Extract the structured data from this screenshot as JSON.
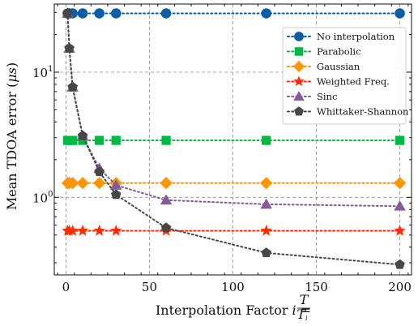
{
  "chart_data": {
    "type": "line",
    "xlabel": "Interpolation Factor",
    "xlabel_math": {
      "variable": "i",
      "relation": "=",
      "numerator": "T",
      "denominator": "T",
      "denominator_subscript": "i"
    },
    "ylabel": "Mean TDOA error (",
    "ylabel_unit": "μs",
    "ylabel_close": ")",
    "xlim": [
      -7,
      207
    ],
    "ylim": [
      0.24,
      35
    ],
    "yscale": "log",
    "xticks": [
      0,
      50,
      100,
      150,
      200
    ],
    "xtick_labels": [
      "0",
      "50",
      "100",
      "150",
      "200"
    ],
    "yticks": [
      1,
      10
    ],
    "ytick_labels": [
      {
        "base": "10",
        "exp": "0"
      },
      {
        "base": "10",
        "exp": "1"
      }
    ],
    "grid": true,
    "legend_position": "top-right",
    "series": [
      {
        "name": "No interpolation",
        "color": "#0C5DA5",
        "marker": "circle",
        "x": [
          1,
          2,
          4,
          10,
          20,
          30,
          60,
          120,
          200
        ],
        "y": [
          29.5,
          29.5,
          29.5,
          29.5,
          29.5,
          29.5,
          29.5,
          29.5,
          29.5
        ]
      },
      {
        "name": "Parabolic",
        "color": "#00B945",
        "marker": "square",
        "x": [
          1,
          2,
          4,
          10,
          20,
          30,
          60,
          120,
          200
        ],
        "y": [
          2.85,
          2.85,
          2.85,
          2.85,
          2.85,
          2.85,
          2.85,
          2.85,
          2.85
        ]
      },
      {
        "name": "Gaussian",
        "color": "#FF9500",
        "marker": "diamond",
        "x": [
          1,
          2,
          4,
          10,
          20,
          30,
          60,
          120,
          200
        ],
        "y": [
          1.3,
          1.3,
          1.3,
          1.3,
          1.3,
          1.3,
          1.3,
          1.3,
          1.3
        ]
      },
      {
        "name": "Weighted Freq.",
        "color": "#FF2C00",
        "marker": "star",
        "x": [
          1,
          2,
          4,
          10,
          20,
          30,
          60,
          120,
          200
        ],
        "y": [
          0.54,
          0.54,
          0.54,
          0.54,
          0.54,
          0.54,
          0.54,
          0.54,
          0.54
        ]
      },
      {
        "name": "Sinc",
        "color": "#845B97",
        "marker": "triangle",
        "x": [
          1,
          2,
          4,
          10,
          20,
          30,
          60,
          120,
          200
        ],
        "y": [
          29.5,
          15.5,
          7.6,
          3.1,
          1.7,
          1.25,
          0.95,
          0.88,
          0.85
        ]
      },
      {
        "name": "Whittaker-Shannon",
        "color": "#474747",
        "marker": "pentagon",
        "x": [
          1,
          2,
          4,
          10,
          20,
          30,
          60,
          120,
          200
        ],
        "y": [
          29.5,
          15.5,
          7.6,
          3.1,
          1.6,
          1.05,
          0.57,
          0.36,
          0.29
        ]
      }
    ]
  }
}
